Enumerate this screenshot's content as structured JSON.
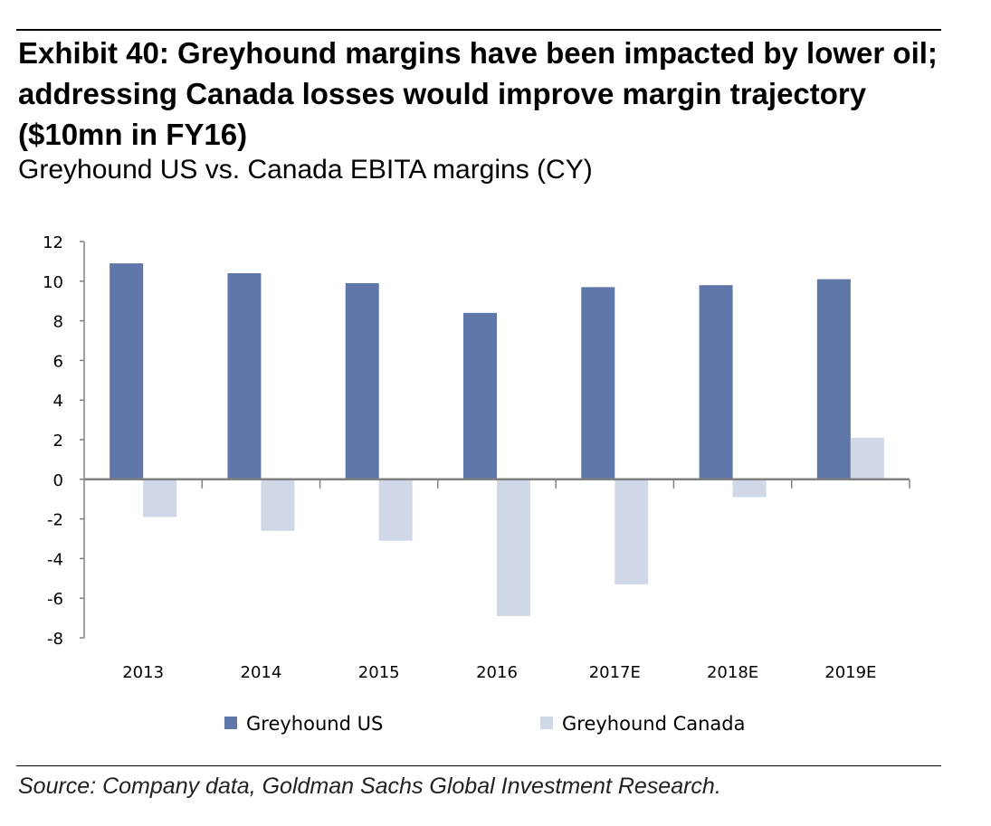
{
  "chart_data": {
    "type": "bar",
    "title": "Exhibit 40: Greyhound margins have been impacted by lower oil; addressing Canada losses would improve margin trajectory ($10mn in FY16)",
    "subtitle": "Greyhound US vs. Canada EBITA margins (CY)",
    "categories": [
      "2013",
      "2014",
      "2015",
      "2016",
      "2017E",
      "2018E",
      "2019E"
    ],
    "series": [
      {
        "name": "Greyhound US",
        "color": "#5f77a8",
        "values": [
          10.9,
          10.4,
          9.9,
          8.4,
          9.7,
          9.8,
          10.1
        ]
      },
      {
        "name": "Greyhound Canada",
        "color": "#d0d7e6",
        "values": [
          -1.9,
          -2.6,
          -3.1,
          -6.9,
          -5.3,
          -0.9,
          2.1
        ]
      }
    ],
    "ylim": [
      -8,
      12
    ],
    "yticks": [
      12,
      10,
      8,
      6,
      4,
      2,
      0,
      -2,
      -4,
      -6,
      -8
    ],
    "xlabel": "",
    "ylabel": "",
    "grid": false,
    "legend": "bottom",
    "source": "Source: Company data, Goldman Sachs Global Investment Research."
  }
}
